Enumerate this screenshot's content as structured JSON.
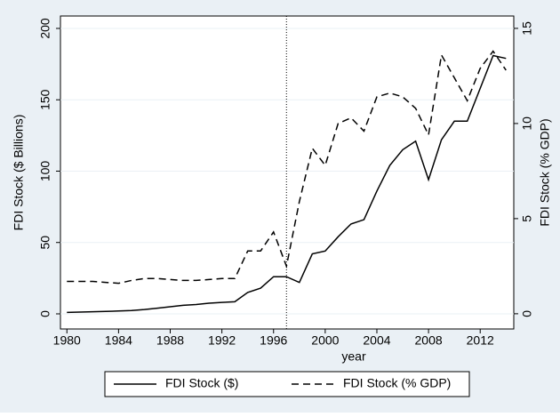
{
  "chart_data": {
    "type": "line",
    "x_label": "year",
    "y_label": "FDI Stock ($ Billions)",
    "y2_label": "FDI Stock (% GDP)",
    "x": [
      1980,
      1981,
      1982,
      1983,
      1984,
      1985,
      1986,
      1987,
      1988,
      1989,
      1990,
      1991,
      1992,
      1993,
      1994,
      1995,
      1996,
      1997,
      1998,
      1999,
      2000,
      2001,
      2002,
      2003,
      2004,
      2005,
      2006,
      2007,
      2008,
      2009,
      2010,
      2011,
      2012,
      2013,
      2014
    ],
    "series": [
      {
        "name": "FDI Stock ($)",
        "color": "#000000",
        "dash": "solid",
        "values": [
          1,
          1.2,
          1.5,
          1.7,
          2,
          2.3,
          3,
          4,
          5,
          6,
          6.5,
          7.5,
          8,
          8.5,
          15,
          18,
          26,
          26,
          22,
          42,
          44,
          54,
          63,
          66,
          86,
          104,
          115,
          121,
          94,
          122,
          135,
          135,
          158,
          181,
          179
        ]
      },
      {
        "name": "FDI Stock (% GDP)",
        "color": "#000000",
        "dash": "dashed",
        "axis": "y2",
        "values": [
          1.7,
          1.7,
          1.7,
          1.65,
          1.6,
          1.75,
          1.85,
          1.85,
          1.8,
          1.75,
          1.75,
          1.8,
          1.85,
          1.85,
          3.3,
          3.3,
          4.3,
          2.5,
          5.9,
          8.7,
          7.8,
          10.0,
          10.3,
          9.6,
          11.4,
          11.6,
          11.4,
          10.8,
          9.4,
          13.6,
          12.4,
          11.2,
          12.9,
          13.8,
          12.8
        ]
      }
    ],
    "xlim": [
      1979.5,
      2014.6
    ],
    "xticks": [
      1980,
      1984,
      1988,
      1992,
      1996,
      2000,
      2004,
      2008,
      2012
    ],
    "ylim": [
      -10.6,
      208.7
    ],
    "yticks": [
      0,
      50,
      100,
      150,
      200
    ],
    "y2lim": [
      -0.8,
      15.65
    ],
    "y2ticks": [
      0,
      5,
      10,
      15
    ],
    "reference_line_x": 1997,
    "grid": true,
    "legend": "bottom"
  }
}
